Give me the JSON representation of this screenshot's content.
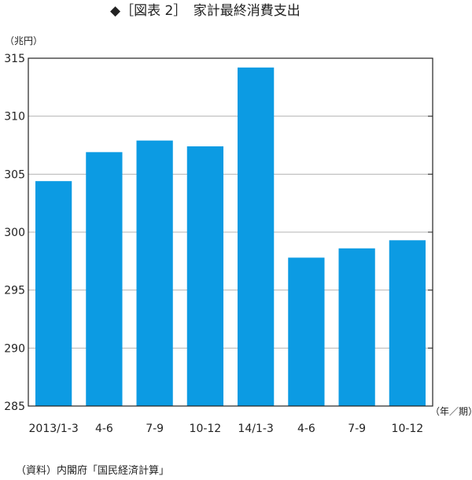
{
  "chart_data": {
    "type": "bar",
    "title": "◆［図表 2］　家計最終消費支出",
    "ylabel": "（兆円）",
    "xlabel": "（年／期）",
    "categories": [
      "2013/1-3",
      "4-6",
      "7-9",
      "10-12",
      "14/1-3",
      "4-6",
      "7-9",
      "10-12"
    ],
    "values": [
      304.4,
      306.9,
      307.9,
      307.4,
      314.2,
      297.8,
      298.6,
      299.3
    ],
    "ylim": [
      285,
      315
    ],
    "yticks": [
      285,
      290,
      295,
      300,
      305,
      310,
      315
    ],
    "grid": true,
    "bar_color": "#0c9be3"
  },
  "source": "（資料）内閣府「国民経済計算」"
}
